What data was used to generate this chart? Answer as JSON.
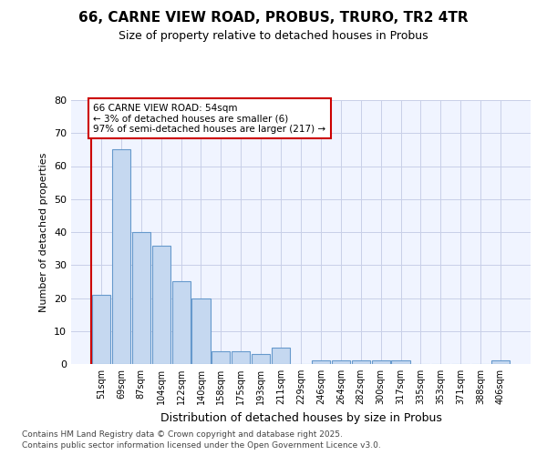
{
  "title1": "66, CARNE VIEW ROAD, PROBUS, TRURO, TR2 4TR",
  "title2": "Size of property relative to detached houses in Probus",
  "xlabel": "Distribution of detached houses by size in Probus",
  "ylabel": "Number of detached properties",
  "bin_labels": [
    "51sqm",
    "69sqm",
    "87sqm",
    "104sqm",
    "122sqm",
    "140sqm",
    "158sqm",
    "175sqm",
    "193sqm",
    "211sqm",
    "229sqm",
    "246sqm",
    "264sqm",
    "282sqm",
    "300sqm",
    "317sqm",
    "335sqm",
    "353sqm",
    "371sqm",
    "388sqm",
    "406sqm"
  ],
  "bar_heights": [
    21,
    65,
    40,
    36,
    25,
    20,
    4,
    4,
    3,
    5,
    0,
    1,
    1,
    1,
    1,
    1,
    0,
    0,
    0,
    0,
    1
  ],
  "bar_color": "#c5d8f0",
  "bar_edge_color": "#6699cc",
  "grid_color": "#c8cfe8",
  "background_color": "#ffffff",
  "plot_bg_color": "#f0f4ff",
  "annotation_text": "66 CARNE VIEW ROAD: 54sqm\n← 3% of detached houses are smaller (6)\n97% of semi-detached houses are larger (217) →",
  "annotation_box_color": "#ffffff",
  "annotation_box_edge": "#cc0000",
  "property_line_color": "#cc0000",
  "ylim": [
    0,
    80
  ],
  "yticks": [
    0,
    10,
    20,
    30,
    40,
    50,
    60,
    70,
    80
  ],
  "footer1": "Contains HM Land Registry data © Crown copyright and database right 2025.",
  "footer2": "Contains public sector information licensed under the Open Government Licence v3.0."
}
